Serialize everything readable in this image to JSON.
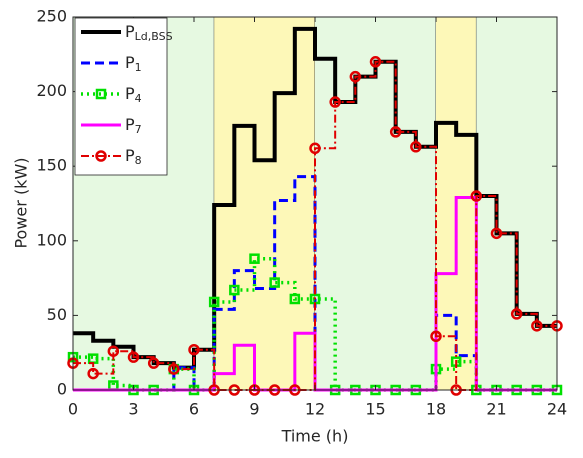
{
  "chart_data": {
    "type": "stairs",
    "xlabel": "Time (h)",
    "ylabel": "Power (kW)",
    "x": [
      0,
      1,
      2,
      3,
      4,
      5,
      6,
      7,
      8,
      9,
      10,
      11,
      12,
      13,
      14,
      15,
      16,
      17,
      18,
      19,
      20,
      21,
      22,
      23,
      24
    ],
    "xlim": [
      0,
      24
    ],
    "xticks": [
      0,
      3,
      6,
      9,
      12,
      15,
      18,
      21,
      24
    ],
    "ylim": [
      0,
      250
    ],
    "yticks": [
      0,
      50,
      100,
      150,
      200,
      250
    ],
    "bands": [
      {
        "from": 0,
        "to": 7,
        "color": "#e6f9e1"
      },
      {
        "from": 7,
        "to": 12,
        "color": "#fdf8b8"
      },
      {
        "from": 12,
        "to": 18,
        "color": "#e6f9e1"
      },
      {
        "from": 18,
        "to": 20,
        "color": "#fdf8b8"
      },
      {
        "from": 20,
        "to": 24,
        "color": "#e6f9e1"
      }
    ],
    "legend": "upper left",
    "series": [
      {
        "name": "P",
        "subscript": "Ld,BSS",
        "color": "#000000",
        "width": 4,
        "dash": "",
        "marker": "",
        "values": [
          38,
          33,
          29,
          22,
          18,
          15,
          27,
          124,
          177,
          154,
          199,
          242,
          222,
          193,
          210,
          220,
          173,
          163,
          179,
          171,
          130,
          105,
          51,
          43,
          43
        ]
      },
      {
        "name": "P",
        "subscript": "1",
        "color": "#0000ff",
        "width": 3,
        "dash": "9 5",
        "marker": "",
        "values": [
          0,
          0,
          0,
          0,
          0,
          15,
          0,
          54,
          80,
          68,
          127,
          143,
          0,
          0,
          0,
          0,
          0,
          0,
          50,
          23,
          0,
          0,
          0,
          0,
          0
        ]
      },
      {
        "name": "P",
        "subscript": "4",
        "color": "#00e000",
        "width": 3.5,
        "dash": "2 4",
        "marker": "square",
        "values": [
          22,
          21,
          3,
          0,
          0,
          14,
          0,
          59,
          67,
          88,
          72,
          61,
          61,
          0,
          0,
          0,
          0,
          0,
          14,
          19,
          0,
          0,
          0,
          0,
          0
        ]
      },
      {
        "name": "P",
        "subscript": "7",
        "color": "#ff00ff",
        "width": 3,
        "dash": "",
        "marker": "",
        "values": [
          0,
          0,
          0,
          0,
          0,
          0,
          0,
          11,
          30,
          0,
          0,
          38,
          0,
          0,
          0,
          0,
          0,
          0,
          78,
          129,
          0,
          0,
          0,
          0,
          0
        ]
      },
      {
        "name": "P",
        "subscript": "8",
        "color": "#e00000",
        "width": 2,
        "dash": "8 3 2 3",
        "marker": "circle",
        "values": [
          18,
          11,
          26,
          22,
          18,
          14,
          27,
          0,
          0,
          0,
          0,
          0,
          162,
          193,
          210,
          220,
          173,
          163,
          36,
          0,
          130,
          105,
          51,
          43,
          43
        ]
      }
    ]
  }
}
